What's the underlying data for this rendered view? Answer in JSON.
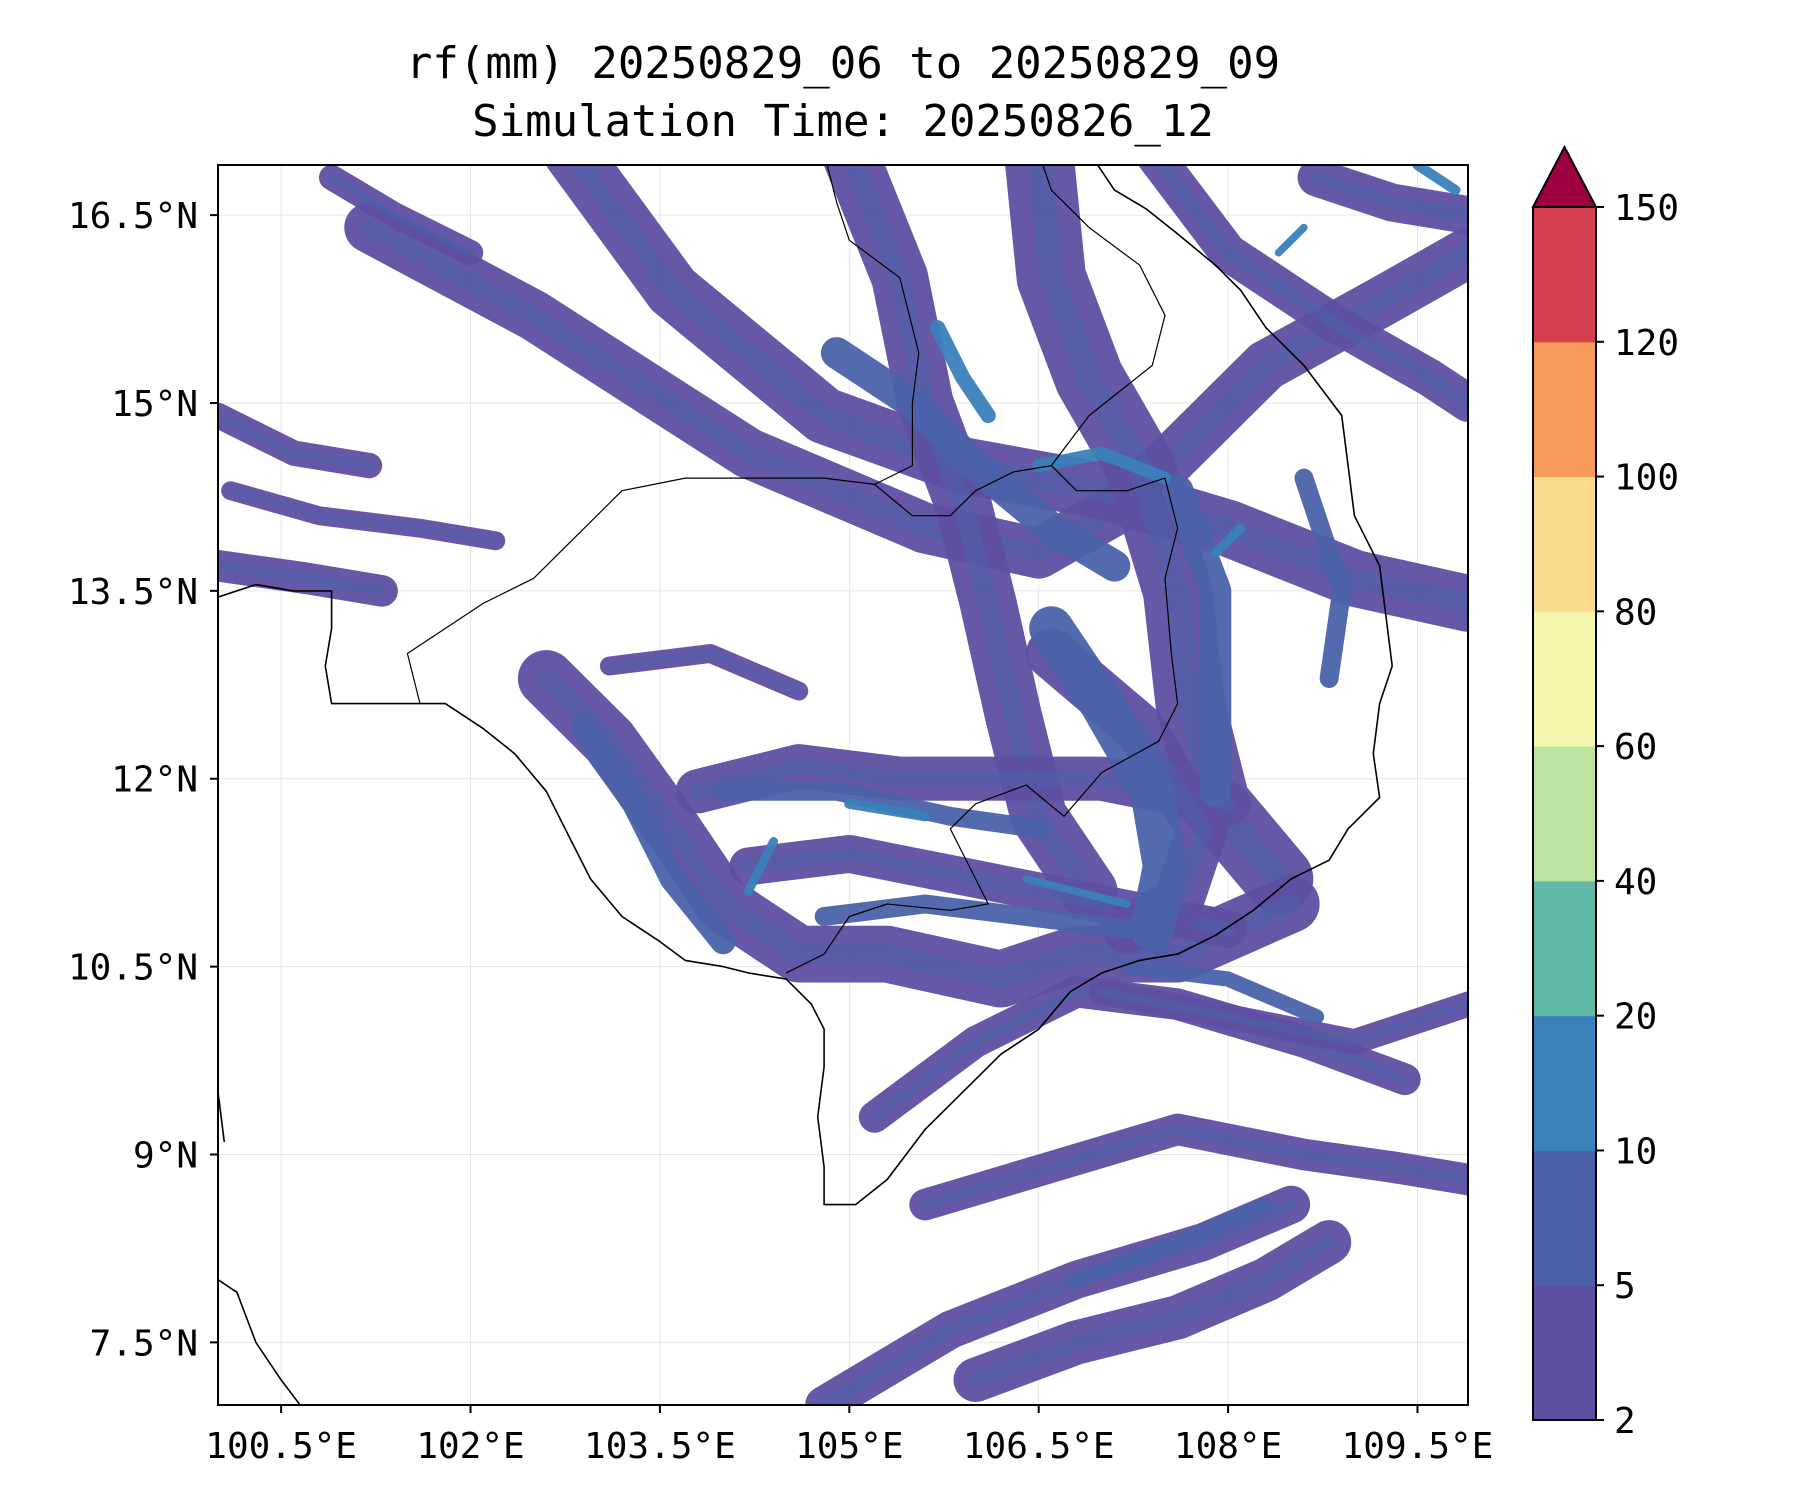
{
  "title": "rf(mm) 20250829_06 to 20250829_09",
  "subtitle": "Simulation Time: 20250826_12",
  "map": {
    "lon_range": [
      100.0,
      109.9
    ],
    "lat_range": [
      7.0,
      16.9
    ],
    "x_ticks": [
      {
        "value": 100.5,
        "label": "100.5°E"
      },
      {
        "value": 102.0,
        "label": "102°E"
      },
      {
        "value": 103.5,
        "label": "103.5°E"
      },
      {
        "value": 105.0,
        "label": "105°E"
      },
      {
        "value": 106.5,
        "label": "106.5°E"
      },
      {
        "value": 108.0,
        "label": "108°E"
      },
      {
        "value": 109.5,
        "label": "109.5°E"
      }
    ],
    "y_ticks": [
      {
        "value": 7.5,
        "label": "7.5°N"
      },
      {
        "value": 9.0,
        "label": "9°N"
      },
      {
        "value": 10.5,
        "label": "10.5°N"
      },
      {
        "value": 12.0,
        "label": "12°N"
      },
      {
        "value": 13.5,
        "label": "13.5°N"
      },
      {
        "value": 15.0,
        "label": "15°N"
      },
      {
        "value": 16.5,
        "label": "16.5°N"
      }
    ],
    "grid": true
  },
  "colorbar": {
    "levels": [
      2,
      5,
      10,
      20,
      40,
      60,
      80,
      100,
      120,
      150
    ],
    "labels": [
      "2",
      "5",
      "10",
      "20",
      "40",
      "60",
      "80",
      "100",
      "120",
      "150"
    ],
    "colors": [
      "#5e4fa2",
      "#4b62aa",
      "#3a81ba",
      "#5fb9a6",
      "#bde3a0",
      "#f4f9ae",
      "#fbdc8c",
      "#f89a59",
      "#d43e4f"
    ],
    "extend_color": "#9e0142",
    "extend": "max"
  },
  "rain_bands": [
    {
      "level": 0,
      "pts": [
        [
          101.2,
          16.4
        ],
        [
          102.5,
          15.7
        ],
        [
          104.2,
          14.6
        ],
        [
          105.6,
          14.0
        ],
        [
          106.5,
          13.8
        ],
        [
          107.2,
          14.2
        ],
        [
          108.3,
          15.3
        ],
        [
          109.2,
          15.8
        ],
        [
          109.9,
          16.2
        ]
      ],
      "w": 0.4
    },
    {
      "level": 0,
      "pts": [
        [
          102.8,
          17.0
        ],
        [
          103.6,
          15.9
        ],
        [
          104.8,
          14.9
        ],
        [
          105.9,
          14.5
        ],
        [
          107.0,
          14.3
        ],
        [
          108.0,
          14.0
        ],
        [
          109.0,
          13.6
        ],
        [
          109.9,
          13.4
        ]
      ],
      "w": 0.45
    },
    {
      "level": 0,
      "pts": [
        [
          105.0,
          17.0
        ],
        [
          105.4,
          16.0
        ],
        [
          105.6,
          15.0
        ],
        [
          105.9,
          14.2
        ],
        [
          106.1,
          13.4
        ],
        [
          106.3,
          12.5
        ],
        [
          106.5,
          11.7
        ],
        [
          106.9,
          11.1
        ]
      ],
      "w": 0.45
    },
    {
      "level": 0,
      "pts": [
        [
          106.5,
          17.0
        ],
        [
          106.6,
          16.0
        ],
        [
          106.9,
          15.2
        ],
        [
          107.3,
          14.5
        ],
        [
          107.6,
          13.5
        ],
        [
          107.7,
          12.6
        ],
        [
          107.9,
          11.8
        ],
        [
          108.4,
          11.2
        ]
      ],
      "w": 0.55
    },
    {
      "level": 0,
      "pts": [
        [
          107.4,
          17.0
        ],
        [
          108.0,
          16.2
        ],
        [
          108.9,
          15.6
        ],
        [
          109.6,
          15.2
        ],
        [
          109.9,
          15.0
        ]
      ],
      "w": 0.3
    },
    {
      "level": 0,
      "pts": [
        [
          102.6,
          12.8
        ],
        [
          103.1,
          12.3
        ],
        [
          103.6,
          11.6
        ],
        [
          104.0,
          11.0
        ],
        [
          104.6,
          10.6
        ],
        [
          105.3,
          10.6
        ],
        [
          106.2,
          10.4
        ],
        [
          106.8,
          10.6
        ],
        [
          107.6,
          10.6
        ],
        [
          108.5,
          11.0
        ]
      ],
      "w": 0.45
    },
    {
      "level": 0,
      "pts": [
        [
          103.8,
          11.9
        ],
        [
          104.6,
          12.1
        ],
        [
          105.4,
          12.0
        ],
        [
          106.3,
          12.0
        ],
        [
          107.0,
          12.0
        ],
        [
          108.0,
          11.8
        ]
      ],
      "w": 0.35
    },
    {
      "level": 0,
      "pts": [
        [
          104.2,
          11.3
        ],
        [
          105.0,
          11.4
        ],
        [
          106.0,
          11.2
        ],
        [
          107.0,
          11.0
        ],
        [
          108.0,
          10.8
        ]
      ],
      "w": 0.3
    },
    {
      "level": 0,
      "pts": [
        [
          106.6,
          13.0
        ],
        [
          107.3,
          12.4
        ],
        [
          107.8,
          11.6
        ],
        [
          107.6,
          11.0
        ],
        [
          107.2,
          10.8
        ]
      ],
      "w": 0.4
    },
    {
      "level": 0,
      "pts": [
        [
          105.2,
          9.3
        ],
        [
          106.0,
          9.9
        ],
        [
          106.8,
          10.3
        ],
        [
          107.6,
          10.2
        ],
        [
          108.6,
          9.9
        ],
        [
          109.4,
          9.6
        ]
      ],
      "w": 0.25
    },
    {
      "level": 0,
      "pts": [
        [
          107.0,
          10.3
        ],
        [
          108.0,
          10.1
        ],
        [
          109.0,
          9.9
        ],
        [
          109.9,
          10.2
        ]
      ],
      "w": 0.2
    },
    {
      "level": 0,
      "pts": [
        [
          105.6,
          8.6
        ],
        [
          106.6,
          8.9
        ],
        [
          107.6,
          9.2
        ],
        [
          108.6,
          9.0
        ],
        [
          109.3,
          8.9
        ],
        [
          109.9,
          8.8
        ]
      ],
      "w": 0.25
    },
    {
      "level": 0,
      "pts": [
        [
          104.8,
          7.0
        ],
        [
          105.8,
          7.6
        ],
        [
          106.8,
          8.0
        ],
        [
          107.8,
          8.3
        ],
        [
          108.5,
          8.6
        ]
      ],
      "w": 0.3
    },
    {
      "level": 0,
      "pts": [
        [
          106.0,
          7.2
        ],
        [
          106.8,
          7.5
        ],
        [
          107.6,
          7.7
        ],
        [
          108.3,
          8.0
        ],
        [
          108.8,
          8.3
        ]
      ],
      "w": 0.35
    },
    {
      "level": 0,
      "pts": [
        [
          100.0,
          14.9
        ],
        [
          100.6,
          14.6
        ],
        [
          101.2,
          14.5
        ]
      ],
      "w": 0.2
    },
    {
      "level": 0,
      "pts": [
        [
          100.0,
          13.7
        ],
        [
          100.7,
          13.6
        ],
        [
          101.3,
          13.5
        ]
      ],
      "w": 0.25
    },
    {
      "level": 0,
      "pts": [
        [
          100.1,
          14.3
        ],
        [
          100.8,
          14.1
        ],
        [
          101.6,
          14.0
        ],
        [
          102.2,
          13.9
        ]
      ],
      "w": 0.15
    },
    {
      "level": 0,
      "pts": [
        [
          100.9,
          16.8
        ],
        [
          101.4,
          16.5
        ],
        [
          102.0,
          16.2
        ]
      ],
      "w": 0.2
    },
    {
      "level": 0,
      "pts": [
        [
          108.7,
          16.8
        ],
        [
          109.3,
          16.6
        ],
        [
          109.9,
          16.5
        ]
      ],
      "w": 0.3
    },
    {
      "level": 0,
      "pts": [
        [
          103.1,
          12.9
        ],
        [
          103.9,
          13.0
        ],
        [
          104.6,
          12.7
        ]
      ],
      "w": 0.15
    },
    {
      "level": 1,
      "pts": [
        [
          104.9,
          15.4
        ],
        [
          105.5,
          15.0
        ],
        [
          106.0,
          14.5
        ],
        [
          106.6,
          14.0
        ],
        [
          107.1,
          13.7
        ]
      ],
      "w": 0.25
    },
    {
      "level": 1,
      "pts": [
        [
          106.6,
          13.2
        ],
        [
          107.0,
          12.6
        ],
        [
          107.4,
          11.9
        ],
        [
          107.5,
          11.3
        ],
        [
          107.4,
          10.8
        ]
      ],
      "w": 0.35
    },
    {
      "level": 1,
      "pts": [
        [
          107.6,
          14.3
        ],
        [
          107.9,
          13.5
        ],
        [
          107.9,
          12.6
        ],
        [
          107.9,
          11.9
        ]
      ],
      "w": 0.25
    },
    {
      "level": 1,
      "pts": [
        [
          102.9,
          12.4
        ],
        [
          103.3,
          11.8
        ],
        [
          103.6,
          11.2
        ],
        [
          104.0,
          10.7
        ]
      ],
      "w": 0.2
    },
    {
      "level": 1,
      "pts": [
        [
          104.0,
          11.9
        ],
        [
          104.9,
          11.9
        ],
        [
          105.8,
          11.7
        ],
        [
          106.5,
          11.6
        ]
      ],
      "w": 0.15
    },
    {
      "level": 1,
      "pts": [
        [
          108.6,
          14.4
        ],
        [
          108.9,
          13.5
        ],
        [
          108.8,
          12.8
        ]
      ],
      "w": 0.15
    },
    {
      "level": 1,
      "pts": [
        [
          104.8,
          10.9
        ],
        [
          105.6,
          11.0
        ],
        [
          106.4,
          10.9
        ],
        [
          107.2,
          10.8
        ]
      ],
      "w": 0.15
    },
    {
      "level": 1,
      "pts": [
        [
          107.2,
          10.5
        ],
        [
          108.0,
          10.4
        ],
        [
          108.7,
          10.1
        ]
      ],
      "w": 0.12
    },
    {
      "level": 1,
      "pts": [
        [
          106.8,
          8.0
        ],
        [
          107.6,
          8.3
        ],
        [
          108.3,
          8.6
        ]
      ],
      "w": 0.12
    },
    {
      "level": 2,
      "pts": [
        [
          105.7,
          15.6
        ],
        [
          105.9,
          15.2
        ],
        [
          106.1,
          14.9
        ]
      ],
      "w": 0.12
    },
    {
      "level": 2,
      "pts": [
        [
          106.5,
          14.5
        ],
        [
          107.0,
          14.6
        ],
        [
          107.5,
          14.4
        ]
      ],
      "w": 0.1
    },
    {
      "level": 2,
      "pts": [
        [
          105.0,
          11.8
        ],
        [
          105.6,
          11.7
        ]
      ],
      "w": 0.08
    },
    {
      "level": 2,
      "pts": [
        [
          104.2,
          11.1
        ],
        [
          104.4,
          11.5
        ]
      ],
      "w": 0.07
    },
    {
      "level": 2,
      "pts": [
        [
          107.9,
          13.8
        ],
        [
          108.1,
          14.0
        ]
      ],
      "w": 0.07
    },
    {
      "level": 2,
      "pts": [
        [
          109.5,
          16.9
        ],
        [
          109.8,
          16.7
        ]
      ],
      "w": 0.08
    },
    {
      "level": 2,
      "pts": [
        [
          106.4,
          11.2
        ],
        [
          106.8,
          11.1
        ],
        [
          107.2,
          11.0
        ]
      ],
      "w": 0.06
    },
    {
      "level": 2,
      "pts": [
        [
          108.4,
          16.2
        ],
        [
          108.6,
          16.4
        ]
      ],
      "w": 0.06
    }
  ],
  "coastlines": [
    [
      [
        100.0,
        13.45
      ],
      [
        100.3,
        13.55
      ],
      [
        100.6,
        13.5
      ],
      [
        100.9,
        13.5
      ],
      [
        100.9,
        13.2
      ],
      [
        100.85,
        12.9
      ],
      [
        100.9,
        12.6
      ],
      [
        101.2,
        12.6
      ],
      [
        101.5,
        12.6
      ],
      [
        101.8,
        12.6
      ],
      [
        102.1,
        12.4
      ],
      [
        102.35,
        12.2
      ],
      [
        102.6,
        11.9
      ],
      [
        102.8,
        11.5
      ],
      [
        102.95,
        11.2
      ],
      [
        103.2,
        10.9
      ],
      [
        103.5,
        10.7
      ],
      [
        103.7,
        10.55
      ],
      [
        104.0,
        10.5
      ],
      [
        104.2,
        10.45
      ],
      [
        104.5,
        10.4
      ],
      [
        104.7,
        10.2
      ],
      [
        104.8,
        10.0
      ],
      [
        104.8,
        9.7
      ],
      [
        104.75,
        9.3
      ],
      [
        104.8,
        8.9
      ],
      [
        104.8,
        8.6
      ],
      [
        105.05,
        8.6
      ],
      [
        105.3,
        8.8
      ],
      [
        105.6,
        9.2
      ],
      [
        105.9,
        9.5
      ],
      [
        106.2,
        9.8
      ],
      [
        106.5,
        10.0
      ],
      [
        106.75,
        10.3
      ],
      [
        107.0,
        10.45
      ],
      [
        107.3,
        10.55
      ],
      [
        107.6,
        10.6
      ],
      [
        107.9,
        10.75
      ],
      [
        108.2,
        10.95
      ],
      [
        108.5,
        11.2
      ],
      [
        108.8,
        11.35
      ],
      [
        108.95,
        11.6
      ],
      [
        109.2,
        11.85
      ],
      [
        109.15,
        12.2
      ],
      [
        109.2,
        12.6
      ],
      [
        109.3,
        12.9
      ],
      [
        109.25,
        13.3
      ],
      [
        109.2,
        13.7
      ],
      [
        109.0,
        14.1
      ],
      [
        108.95,
        14.5
      ],
      [
        108.9,
        14.9
      ],
      [
        108.6,
        15.3
      ],
      [
        108.3,
        15.6
      ],
      [
        108.1,
        15.9
      ],
      [
        107.9,
        16.1
      ],
      [
        107.6,
        16.35
      ],
      [
        107.35,
        16.55
      ],
      [
        107.1,
        16.7
      ],
      [
        106.9,
        17.0
      ]
    ],
    [
      [
        100.0,
        9.5
      ],
      [
        100.05,
        9.1
      ]
    ],
    [
      [
        100.0,
        8.0
      ],
      [
        100.15,
        7.9
      ],
      [
        100.3,
        7.5
      ],
      [
        100.5,
        7.2
      ],
      [
        100.65,
        7.0
      ]
    ]
  ],
  "borders": [
    [
      [
        101.6,
        12.6
      ],
      [
        101.5,
        13.0
      ],
      [
        102.1,
        13.4
      ],
      [
        102.5,
        13.6
      ],
      [
        102.8,
        13.9
      ],
      [
        103.2,
        14.3
      ],
      [
        103.7,
        14.4
      ],
      [
        104.2,
        14.4
      ],
      [
        104.8,
        14.4
      ],
      [
        105.2,
        14.35
      ],
      [
        105.5,
        14.1
      ],
      [
        105.8,
        14.1
      ],
      [
        106.0,
        14.3
      ],
      [
        106.3,
        14.45
      ],
      [
        106.6,
        14.5
      ],
      [
        106.8,
        14.3
      ],
      [
        107.2,
        14.3
      ],
      [
        107.5,
        14.4
      ],
      [
        107.6,
        14.0
      ],
      [
        107.5,
        13.6
      ],
      [
        107.55,
        13.0
      ],
      [
        107.6,
        12.6
      ],
      [
        107.45,
        12.3
      ],
      [
        107.0,
        12.05
      ],
      [
        106.7,
        11.7
      ],
      [
        106.4,
        11.95
      ],
      [
        106.0,
        11.8
      ],
      [
        105.8,
        11.6
      ],
      [
        106.0,
        11.2
      ],
      [
        106.1,
        11.0
      ],
      [
        105.8,
        10.95
      ],
      [
        105.3,
        11.0
      ],
      [
        105.0,
        10.9
      ],
      [
        104.8,
        10.6
      ],
      [
        104.5,
        10.45
      ]
    ],
    [
      [
        105.2,
        14.35
      ],
      [
        105.5,
        14.5
      ],
      [
        105.5,
        15.0
      ],
      [
        105.55,
        15.4
      ],
      [
        105.4,
        16.0
      ],
      [
        105.0,
        16.3
      ],
      [
        104.9,
        16.6
      ],
      [
        104.8,
        17.0
      ]
    ],
    [
      [
        106.6,
        14.5
      ],
      [
        106.9,
        14.9
      ],
      [
        107.4,
        15.3
      ],
      [
        107.5,
        15.7
      ],
      [
        107.3,
        16.1
      ],
      [
        106.9,
        16.4
      ],
      [
        106.6,
        16.7
      ],
      [
        106.5,
        17.0
      ]
    ]
  ]
}
